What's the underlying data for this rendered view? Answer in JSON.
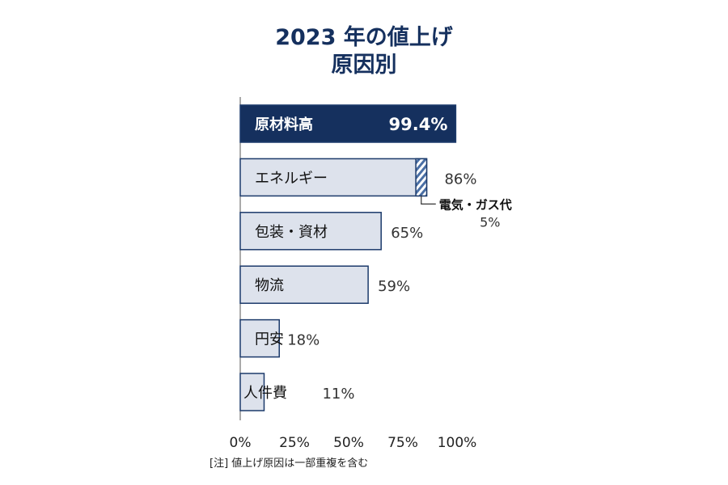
{
  "chart_data": {
    "type": "bar",
    "orientation": "horizontal",
    "title_lines": [
      "2023 年の値上げ",
      "原因別"
    ],
    "categories": [
      "原材料高",
      "エネルギー",
      "包装・資材",
      "物流",
      "円安",
      "人件費"
    ],
    "values": [
      99.4,
      86,
      65,
      59,
      18,
      11
    ],
    "value_labels": [
      "99.4%",
      "86%",
      "65%",
      "59%",
      "18%",
      "11%"
    ],
    "highlight_index": 0,
    "sub_segment": {
      "parent_category": "エネルギー",
      "label": "電気・ガス代",
      "value": 5,
      "value_label": "5%"
    },
    "xlim": [
      0,
      100
    ],
    "x_ticks": [
      0,
      25,
      50,
      75,
      100
    ],
    "x_tick_labels": [
      "0%",
      "25%",
      "50%",
      "75%",
      "100%"
    ],
    "grid": false,
    "colors": {
      "highlight": "#15305e",
      "bar_fill": "#dde2ec",
      "bar_border": "#1c3a6b",
      "hatch": "#4a6fa5",
      "title": "#15305e"
    }
  },
  "note": "[注] 値上げ原因は一部重複を含む"
}
